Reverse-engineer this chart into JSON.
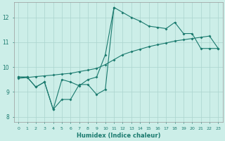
{
  "xlabel": "Humidex (Indice chaleur)",
  "background_color": "#cceee8",
  "grid_color": "#aad4ce",
  "line_color": "#1a7a6e",
  "xlim": [
    -0.5,
    23.5
  ],
  "ylim": [
    7.8,
    12.6
  ],
  "yticks": [
    8,
    9,
    10,
    11,
    12
  ],
  "series1_x": [
    0,
    1,
    2,
    3,
    4,
    5,
    6,
    7,
    8,
    9,
    10,
    11,
    12,
    13,
    14,
    15,
    16,
    17,
    18,
    19,
    20,
    21,
    22,
    23
  ],
  "series1_y": [
    9.6,
    9.6,
    9.2,
    9.4,
    8.3,
    8.7,
    8.7,
    9.3,
    9.3,
    8.9,
    9.1,
    12.4,
    12.2,
    12.0,
    11.85,
    11.65,
    11.6,
    11.55,
    11.8,
    11.35,
    11.35,
    10.75,
    10.75,
    10.75
  ],
  "series2_x": [
    0,
    1,
    2,
    3,
    4,
    5,
    6,
    7,
    8,
    9,
    10,
    11
  ],
  "series2_y": [
    9.6,
    9.6,
    9.2,
    9.4,
    8.3,
    9.5,
    9.4,
    9.25,
    9.5,
    9.6,
    10.5,
    12.4
  ],
  "series3_x": [
    0,
    1,
    2,
    3,
    4,
    5,
    6,
    7,
    8,
    9,
    10,
    11,
    12,
    13,
    14,
    15,
    16,
    17,
    18,
    19,
    20,
    21,
    22,
    23
  ],
  "series3_y": [
    9.55,
    9.58,
    9.62,
    9.65,
    9.68,
    9.72,
    9.75,
    9.82,
    9.88,
    9.95,
    10.1,
    10.3,
    10.5,
    10.62,
    10.72,
    10.82,
    10.9,
    10.97,
    11.05,
    11.1,
    11.15,
    11.2,
    11.25,
    10.75
  ]
}
